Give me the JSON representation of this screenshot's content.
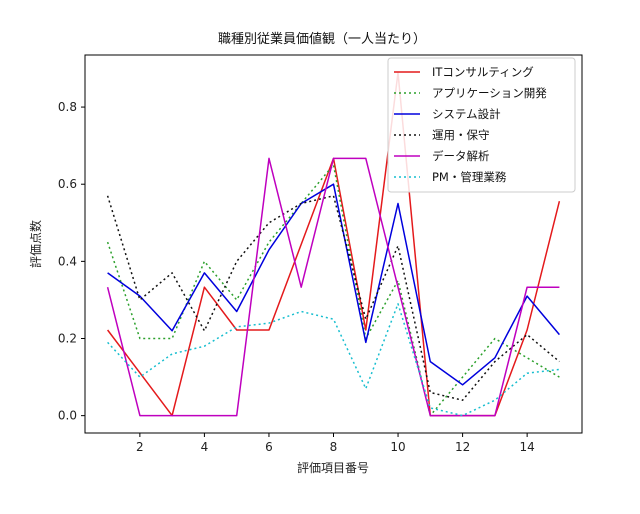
{
  "chart_data": {
    "type": "line",
    "title": "職種別従業員価値観（一人当たり）",
    "xlabel": "評価項目番号",
    "ylabel": "評価点数",
    "x": [
      1,
      2,
      3,
      4,
      5,
      6,
      7,
      8,
      9,
      10,
      11,
      12,
      13,
      14,
      15
    ],
    "xlim": [
      0.3,
      15.7
    ],
    "ylim": [
      -0.045,
      0.935
    ],
    "xticks": [
      2,
      4,
      6,
      8,
      10,
      12,
      14
    ],
    "yticks": [
      0.0,
      0.2,
      0.4,
      0.6,
      0.8
    ],
    "ytick_labels": [
      "0.0",
      "0.2",
      "0.4",
      "0.6",
      "0.8"
    ],
    "grid": false,
    "legend_position": "top-right",
    "series": [
      {
        "name": "ITコンサルティング",
        "color": "#e41a1c",
        "linestyle": "solid",
        "values": [
          0.222,
          0.111,
          0.0,
          0.333,
          0.222,
          0.222,
          0.444,
          0.667,
          0.222,
          0.889,
          0.0,
          0.0,
          0.0,
          0.222,
          0.556
        ]
      },
      {
        "name": "アプリケーション開発",
        "color": "#2ca02c",
        "linestyle": "dotted",
        "values": [
          0.45,
          0.2,
          0.2,
          0.4,
          0.3,
          0.45,
          0.55,
          0.65,
          0.2,
          0.35,
          0.0,
          0.1,
          0.2,
          0.15,
          0.1
        ]
      },
      {
        "name": "システム設計",
        "color": "#0000dd",
        "linestyle": "solid",
        "values": [
          0.37,
          0.31,
          0.22,
          0.37,
          0.27,
          0.43,
          0.55,
          0.6,
          0.19,
          0.55,
          0.14,
          0.08,
          0.15,
          0.31,
          0.21
        ]
      },
      {
        "name": "運用・保守",
        "color": "#111111",
        "linestyle": "dotted",
        "values": [
          0.57,
          0.3,
          0.37,
          0.22,
          0.4,
          0.5,
          0.55,
          0.57,
          0.25,
          0.44,
          0.06,
          0.04,
          0.14,
          0.21,
          0.14
        ]
      },
      {
        "name": "データ解析",
        "color": "#bf00bf",
        "linestyle": "solid",
        "values": [
          0.333,
          0.0,
          0.0,
          0.0,
          0.0,
          0.667,
          0.333,
          0.667,
          0.667,
          0.333,
          0.0,
          0.0,
          0.0,
          0.333,
          0.333
        ]
      },
      {
        "name": "PM・管理業務",
        "color": "#17becf",
        "linestyle": "dotted",
        "values": [
          0.19,
          0.1,
          0.16,
          0.18,
          0.23,
          0.24,
          0.27,
          0.25,
          0.07,
          0.29,
          0.02,
          0.0,
          0.04,
          0.11,
          0.12
        ]
      }
    ]
  }
}
